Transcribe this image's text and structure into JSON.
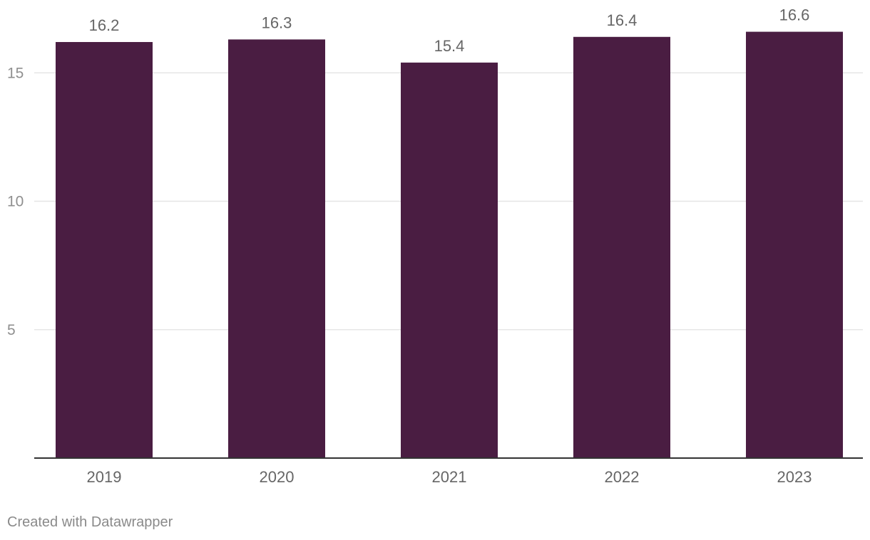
{
  "chart_data": {
    "type": "bar",
    "categories": [
      "2019",
      "2020",
      "2021",
      "2022",
      "2023"
    ],
    "values": [
      16.2,
      16.3,
      15.4,
      16.4,
      16.6
    ],
    "value_labels": [
      "16.2",
      "16.3",
      "15.4",
      "16.4",
      "16.6"
    ],
    "title": "",
    "xlabel": "",
    "ylabel": "",
    "ylim": [
      0,
      16.6
    ],
    "yticks": [
      5,
      10,
      15
    ],
    "grid": true,
    "bar_color": "#4a1d42",
    "grid_color": "#e6e6e6",
    "axis_color": "#333333"
  },
  "footer": {
    "credit": "Created with Datawrapper"
  }
}
